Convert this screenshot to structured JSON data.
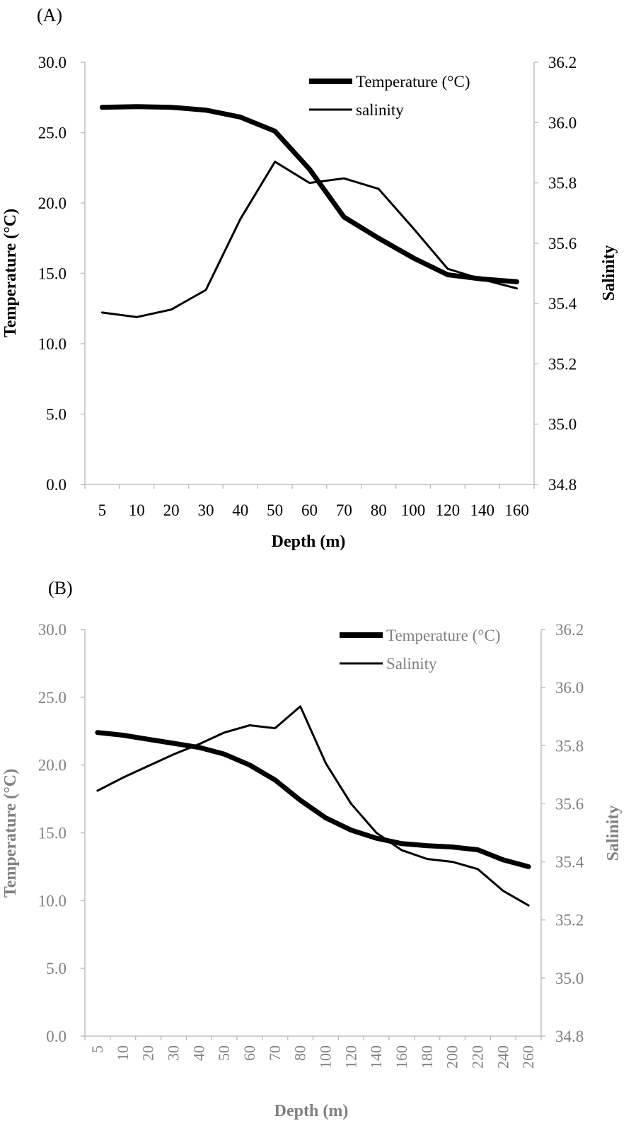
{
  "chart_data": [
    {
      "panel_label": "(A)",
      "type": "line",
      "categories": [
        "5",
        "10",
        "20",
        "30",
        "40",
        "50",
        "60",
        "70",
        "80",
        "100",
        "120",
        "140",
        "160"
      ],
      "xlabel": "Depth (m)",
      "ylabel": "Temperature (°C)",
      "ylabel2": "Salinity",
      "ylim": [
        0,
        30
      ],
      "ylim2": [
        34.8,
        36.2
      ],
      "yticks": [
        "0.0",
        "5.0",
        "10.0",
        "15.0",
        "20.0",
        "25.0",
        "30.0"
      ],
      "yticks2": [
        "34.8",
        "35.0",
        "35.2",
        "35.4",
        "35.6",
        "35.8",
        "36.0",
        "36.2"
      ],
      "series": [
        {
          "name": "Temperature (°C)",
          "axis": "left",
          "values": [
            26.8,
            26.85,
            26.8,
            26.6,
            26.1,
            25.1,
            22.4,
            19.0,
            17.5,
            16.1,
            14.9,
            14.6,
            14.4
          ]
        },
        {
          "name": "salinity",
          "axis": "right",
          "values": [
            35.37,
            35.355,
            35.38,
            35.445,
            35.68,
            35.87,
            35.8,
            35.815,
            35.78,
            35.65,
            35.515,
            35.48,
            35.45
          ]
        }
      ],
      "legend": "top-right",
      "grid": false
    },
    {
      "panel_label": "(B)",
      "type": "line",
      "categories": [
        "5",
        "10",
        "20",
        "30",
        "40",
        "50",
        "60",
        "70",
        "80",
        "100",
        "120",
        "140",
        "160",
        "180",
        "200",
        "220",
        "240",
        "260"
      ],
      "xlabel": "Depth (m)",
      "ylabel": "Temperature (°C)",
      "ylabel2": "Salinity",
      "ylim": [
        0,
        30
      ],
      "ylim2": [
        34.8,
        36.2
      ],
      "yticks": [
        "0.0",
        "5.0",
        "10.0",
        "15.0",
        "20.0",
        "25.0",
        "30.0"
      ],
      "yticks2": [
        "34.8",
        "35.0",
        "35.2",
        "35.4",
        "35.6",
        "35.8",
        "36.0",
        "36.2"
      ],
      "series": [
        {
          "name": "Temperature (°C)",
          "axis": "left",
          "values": [
            22.4,
            22.2,
            21.9,
            21.6,
            21.3,
            20.8,
            20.0,
            18.9,
            17.4,
            16.1,
            15.2,
            14.6,
            14.2,
            14.05,
            13.95,
            13.75,
            13.0,
            12.5
          ]
        },
        {
          "name": "Salinity",
          "axis": "right",
          "values": [
            35.645,
            35.69,
            35.73,
            35.77,
            35.805,
            35.845,
            35.87,
            35.86,
            35.935,
            35.74,
            35.6,
            35.5,
            35.44,
            35.41,
            35.4,
            35.375,
            35.3,
            35.25
          ]
        }
      ],
      "legend": "top-right",
      "grid": false
    }
  ]
}
